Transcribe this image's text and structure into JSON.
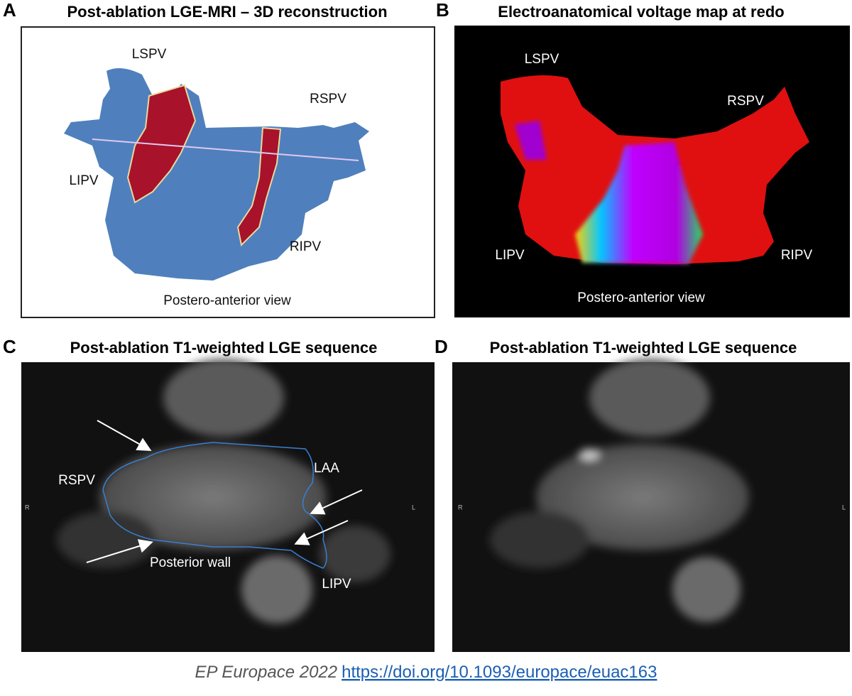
{
  "panels": [
    {
      "letter": "A",
      "title": "Post-ablation LGE-MRI – 3D reconstruction",
      "labels": [
        "LSPV",
        "RSPV",
        "LIPV",
        "RIPV"
      ],
      "caption": "Postero-anterior view"
    },
    {
      "letter": "B",
      "title": "Electroanatomical voltage map at redo",
      "labels": [
        "LSPV",
        "RSPV",
        "LIPV",
        "RIPV"
      ],
      "caption": "Postero-anterior view"
    },
    {
      "letter": "C",
      "title": "Post-ablation T1-weighted LGE sequence",
      "labels": [
        "RSPV",
        "LAA",
        "Posterior wall",
        "LIPV"
      ],
      "orientation": [
        "R",
        "L"
      ]
    },
    {
      "letter": "D",
      "title": "Post-ablation T1-weighted LGE sequence",
      "orientation": [
        "R",
        "L"
      ]
    }
  ],
  "footer": {
    "citation": "EP Europace 2022",
    "link": "https://doi.org/10.1093/europace/euac163"
  }
}
